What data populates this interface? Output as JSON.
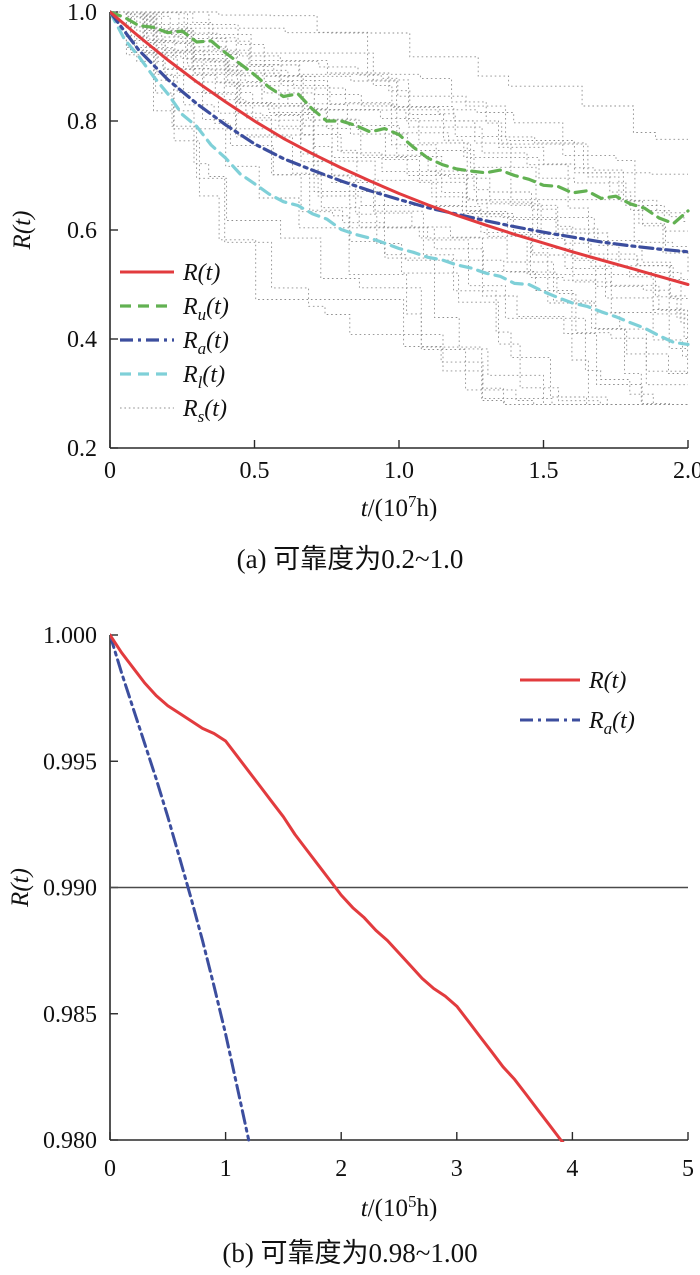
{
  "page": {
    "background": "#ffffff"
  },
  "chart_data": [
    {
      "id": "a",
      "type": "line",
      "caption": "(a) 可靠度为0.2~1.0",
      "xlabel": {
        "pre": "t",
        "mid": "/(10",
        "sup": "7",
        "post": "h)"
      },
      "ylabel": {
        "pre": "R",
        "post": "(t)"
      },
      "xlim": [
        0,
        2
      ],
      "ylim": [
        0.2,
        1.0
      ],
      "xticks": {
        "values": [
          0,
          0.5,
          1.0,
          1.5,
          2.0
        ],
        "labels": [
          "0",
          "0.5",
          "1.0",
          "1.5",
          "2.0"
        ]
      },
      "yticks": {
        "values": [
          0.2,
          0.4,
          0.6,
          0.8,
          1.0
        ],
        "labels": [
          "0.2",
          "0.4",
          "0.6",
          "0.8",
          "1.0"
        ]
      },
      "grid": false,
      "legend_position": "lower-left",
      "series": [
        {
          "label": {
            "pre": "R",
            "sub": "",
            "post": "(t)"
          },
          "color": "#e23b3e",
          "dash": "solid",
          "width": 3,
          "z": 5,
          "x": [
            0,
            0.1,
            0.2,
            0.3,
            0.4,
            0.5,
            0.6,
            0.7,
            0.8,
            0.9,
            1.0,
            1.1,
            1.2,
            1.3,
            1.4,
            1.5,
            1.6,
            1.7,
            1.8,
            1.9,
            2.0
          ],
          "y": [
            1.0,
            0.955,
            0.912,
            0.872,
            0.835,
            0.8,
            0.768,
            0.74,
            0.714,
            0.69,
            0.667,
            0.646,
            0.627,
            0.609,
            0.592,
            0.576,
            0.56,
            0.545,
            0.53,
            0.515,
            0.5
          ]
        },
        {
          "label": {
            "pre": "R",
            "sub": "u",
            "post": "(t)"
          },
          "color": "#62b152",
          "dash": "dashed",
          "width": 3.2,
          "z": 2,
          "x": [
            0,
            0.05,
            0.1,
            0.15,
            0.2,
            0.25,
            0.3,
            0.35,
            0.4,
            0.45,
            0.5,
            0.55,
            0.6,
            0.65,
            0.7,
            0.75,
            0.8,
            0.85,
            0.9,
            0.95,
            1.0,
            1.05,
            1.1,
            1.15,
            1.2,
            1.25,
            1.3,
            1.35,
            1.4,
            1.45,
            1.5,
            1.55,
            1.6,
            1.65,
            1.7,
            1.75,
            1.8,
            1.85,
            1.9,
            1.95,
            2.0
          ],
          "y": [
            1.0,
            0.99,
            0.975,
            0.972,
            0.962,
            0.965,
            0.945,
            0.947,
            0.925,
            0.905,
            0.885,
            0.862,
            0.845,
            0.85,
            0.822,
            0.8,
            0.8,
            0.792,
            0.78,
            0.786,
            0.775,
            0.752,
            0.732,
            0.72,
            0.712,
            0.708,
            0.705,
            0.71,
            0.7,
            0.693,
            0.682,
            0.68,
            0.668,
            0.672,
            0.658,
            0.662,
            0.648,
            0.64,
            0.622,
            0.612,
            0.635
          ]
        },
        {
          "label": {
            "pre": "R",
            "sub": "a",
            "post": "(t)"
          },
          "color": "#3c4e9e",
          "dash": "dashdot",
          "width": 3.2,
          "z": 4,
          "x": [
            0,
            0.1,
            0.2,
            0.3,
            0.4,
            0.5,
            0.6,
            0.7,
            0.8,
            0.9,
            1.0,
            1.1,
            1.2,
            1.3,
            1.4,
            1.5,
            1.6,
            1.7,
            1.8,
            1.9,
            2.0
          ],
          "y": [
            1.0,
            0.93,
            0.876,
            0.832,
            0.793,
            0.758,
            0.731,
            0.71,
            0.69,
            0.672,
            0.656,
            0.641,
            0.629,
            0.617,
            0.606,
            0.596,
            0.587,
            0.578,
            0.571,
            0.565,
            0.56
          ]
        },
        {
          "label": {
            "pre": "R",
            "sub": "l",
            "post": "(t)"
          },
          "color": "#7fd0d8",
          "dash": "dashed",
          "width": 3.2,
          "z": 3,
          "x": [
            0,
            0.05,
            0.1,
            0.15,
            0.2,
            0.25,
            0.3,
            0.35,
            0.4,
            0.45,
            0.5,
            0.55,
            0.6,
            0.65,
            0.7,
            0.75,
            0.8,
            0.85,
            0.9,
            0.95,
            1.0,
            1.05,
            1.1,
            1.15,
            1.2,
            1.25,
            1.3,
            1.35,
            1.4,
            1.45,
            1.5,
            1.55,
            1.6,
            1.65,
            1.7,
            1.75,
            1.8,
            1.85,
            1.9,
            1.95,
            2.0
          ],
          "y": [
            1.0,
            0.95,
            0.918,
            0.882,
            0.85,
            0.812,
            0.79,
            0.756,
            0.732,
            0.703,
            0.685,
            0.666,
            0.652,
            0.645,
            0.63,
            0.62,
            0.601,
            0.592,
            0.585,
            0.576,
            0.566,
            0.559,
            0.55,
            0.545,
            0.536,
            0.53,
            0.521,
            0.515,
            0.502,
            0.5,
            0.487,
            0.476,
            0.466,
            0.46,
            0.45,
            0.441,
            0.43,
            0.42,
            0.406,
            0.394,
            0.39
          ]
        }
      ],
      "samples": {
        "label": {
          "pre": "R",
          "sub": "s",
          "post": "(t)"
        },
        "count": 32,
        "seed": 11,
        "color": "#8f8f8f",
        "dash": "dotted",
        "width": 0.9,
        "value_floor": 0.28
      }
    },
    {
      "id": "b",
      "type": "line",
      "caption": "(b) 可靠度为0.98~1.00",
      "xlabel": {
        "pre": "t",
        "mid": "/(10",
        "sup": "5",
        "post": "h)"
      },
      "ylabel": {
        "pre": "R",
        "post": "(t)"
      },
      "xlim": [
        0,
        5
      ],
      "ylim": [
        0.98,
        1.0
      ],
      "xticks": {
        "values": [
          0,
          1,
          2,
          3,
          4,
          5
        ],
        "labels": [
          "0",
          "1",
          "2",
          "3",
          "4",
          "5"
        ]
      },
      "yticks": {
        "values": [
          0.98,
          0.985,
          0.99,
          0.995,
          1.0
        ],
        "labels": [
          "0.980",
          "0.985",
          "0.990",
          "0.995",
          "1.000"
        ]
      },
      "grid": false,
      "legend_position": "upper-right",
      "hline": {
        "y": 0.99,
        "color": "#4a4a4a",
        "width": 1.4
      },
      "series": [
        {
          "label": {
            "pre": "R",
            "sub": "",
            "post": "(t)"
          },
          "color": "#e23b3e",
          "dash": "solid",
          "width": 3,
          "z": 2,
          "x": [
            0,
            0.1,
            0.2,
            0.3,
            0.4,
            0.5,
            0.6,
            0.7,
            0.8,
            0.9,
            1.0,
            1.1,
            1.2,
            1.3,
            1.4,
            1.5,
            1.6,
            1.7,
            1.8,
            1.9,
            2.0,
            2.1,
            2.2,
            2.3,
            2.4,
            2.5,
            2.6,
            2.7,
            2.8,
            2.9,
            3.0,
            3.1,
            3.2,
            3.3,
            3.4,
            3.5,
            3.6,
            3.7,
            3.8,
            3.9,
            4.0
          ],
          "y": [
            1.0,
            0.9993,
            0.9987,
            0.9981,
            0.9976,
            0.9972,
            0.9969,
            0.9966,
            0.9963,
            0.9961,
            0.9958,
            0.9952,
            0.9946,
            0.994,
            0.9934,
            0.9928,
            0.9921,
            0.9915,
            0.9909,
            0.9903,
            0.9897,
            0.9892,
            0.9888,
            0.9883,
            0.9879,
            0.9874,
            0.9869,
            0.9864,
            0.986,
            0.9857,
            0.9853,
            0.9847,
            0.9841,
            0.9835,
            0.9829,
            0.9824,
            0.9818,
            0.9812,
            0.9806,
            0.98,
            0.9795
          ]
        },
        {
          "label": {
            "pre": "R",
            "sub": "a",
            "post": "(t)"
          },
          "color": "#3c4e9e",
          "dash": "dashdot",
          "width": 3,
          "z": 1,
          "x": [
            0,
            0.1,
            0.2,
            0.3,
            0.4,
            0.5,
            0.6,
            0.7,
            0.8,
            0.9,
            1.0,
            1.1,
            1.2
          ],
          "y": [
            1.0,
            0.9985,
            0.9971,
            0.9957,
            0.9943,
            0.9928,
            0.9912,
            0.9896,
            0.9879,
            0.9861,
            0.9842,
            0.9821,
            0.98
          ]
        }
      ]
    }
  ]
}
